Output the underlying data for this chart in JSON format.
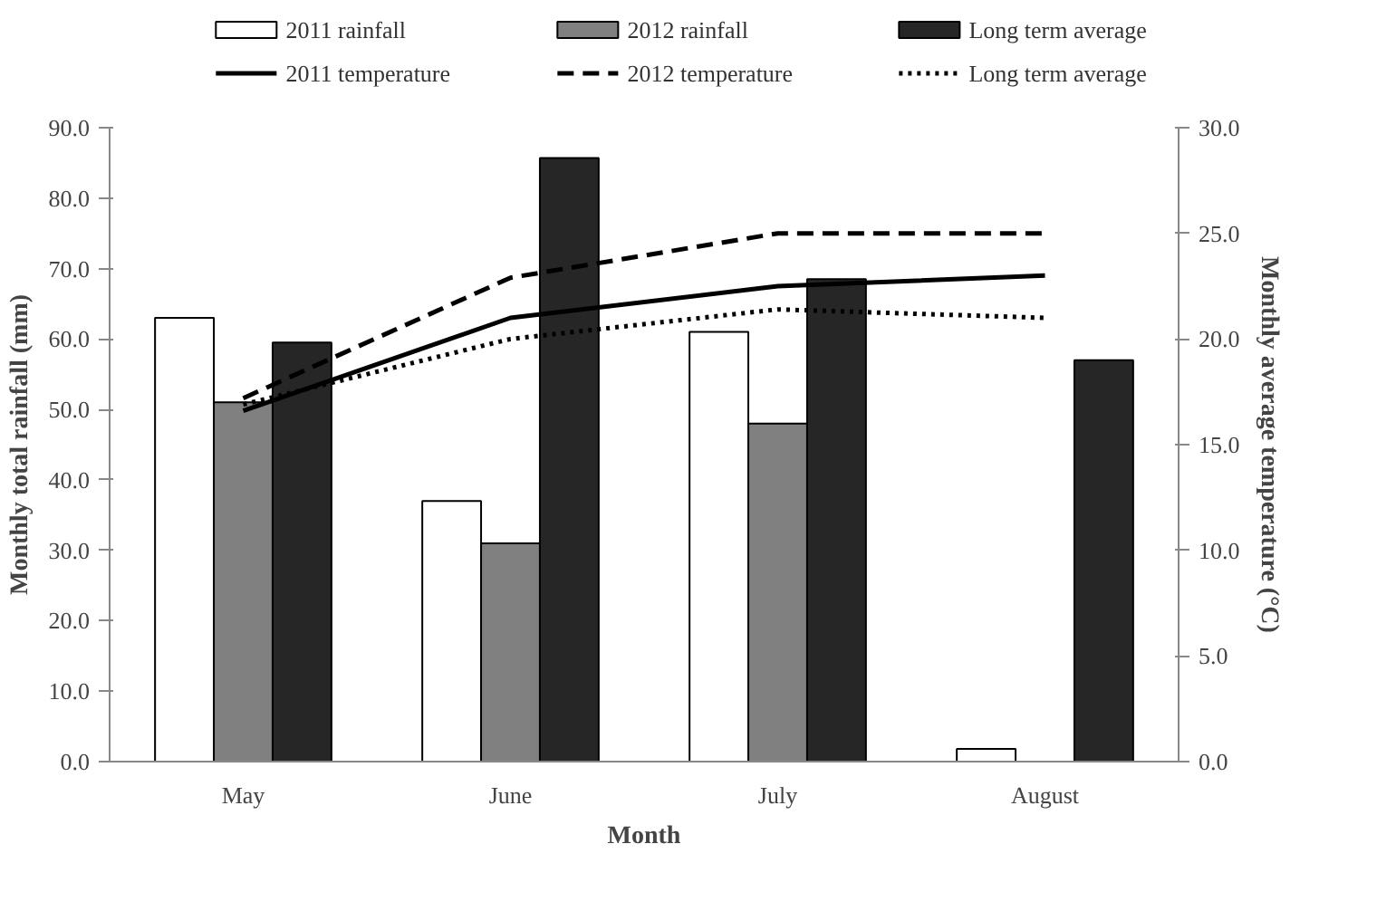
{
  "chart_data": {
    "type": "bar",
    "xlabel": "Month",
    "ylabel": "Monthly total rainfall (mm)",
    "y2label": "Monthly average temperature (°C)",
    "categories": [
      "May",
      "June",
      "July",
      "August"
    ],
    "series": [
      {
        "name": "2011 rainfall",
        "color": "#ffffff",
        "values": [
          63.0,
          37.0,
          61.0,
          1.8
        ]
      },
      {
        "name": "2012 rainfall",
        "color": "#808080",
        "values": [
          51.0,
          31.0,
          48.0,
          null
        ]
      },
      {
        "name": "Long term average",
        "color": "#262626",
        "values": [
          59.5,
          85.7,
          68.5,
          57.0
        ]
      },
      {
        "name": "2011 temperature",
        "type": "line",
        "axis": "y2",
        "color": "#000000",
        "line_style": "solid",
        "values": [
          16.6,
          21.0,
          22.5,
          23.0
        ]
      },
      {
        "name": "2012 temperature",
        "type": "line",
        "axis": "y2",
        "color": "#000000",
        "line_style": "dashed",
        "values": [
          17.2,
          22.9,
          25.0,
          25.0
        ]
      },
      {
        "name": "Long term average",
        "type": "line",
        "axis": "y2",
        "color": "#000000",
        "line_style": "dotted",
        "values": [
          16.9,
          20.0,
          21.4,
          21.0
        ]
      }
    ],
    "ylim": [
      0,
      90
    ],
    "yticks": [
      {
        "value": 0,
        "label": "0.0"
      },
      {
        "value": 10,
        "label": "10.0"
      },
      {
        "value": 20,
        "label": "20.0"
      },
      {
        "value": 30,
        "label": "30.0"
      },
      {
        "value": 40,
        "label": "40.0"
      },
      {
        "value": 50,
        "label": "50.0"
      },
      {
        "value": 60,
        "label": "60.0"
      },
      {
        "value": 70,
        "label": "70.0"
      },
      {
        "value": 80,
        "label": "80.0"
      },
      {
        "value": 90,
        "label": "90.0"
      }
    ],
    "y2lim": [
      0,
      30
    ],
    "y2ticks": [
      {
        "value": 0,
        "label": "0.0"
      },
      {
        "value": 5,
        "label": "5.0"
      },
      {
        "value": 10,
        "label": "10.0"
      },
      {
        "value": 15,
        "label": "15.0"
      },
      {
        "value": 20,
        "label": "20.0"
      },
      {
        "value": 25,
        "label": "25.0"
      },
      {
        "value": 30,
        "label": "30.0"
      }
    ],
    "grid": false,
    "legend": "top"
  }
}
